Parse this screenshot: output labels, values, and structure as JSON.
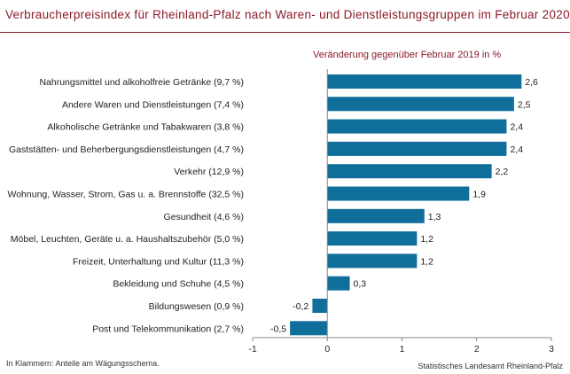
{
  "title": "Verbraucherpreisindex für Rheinland-Pfalz nach Waren- und Dienstleistungsgruppen im Februar 2020",
  "subtitle": "Veränderung gegenüber Februar 2019 in %",
  "footnote_left": "In Klammern: Anteile am Wägungsschema.",
  "footnote_right": "Statistisches Landesamt Rheinland-Pfalz",
  "colors": {
    "bar": "#0f6e9a",
    "accent": "#8b1a2b",
    "axis": "#888888"
  },
  "chart_data": {
    "type": "bar",
    "orientation": "horizontal",
    "categories": [
      "Nahrungsmittel und alkoholfreie Getränke (9,7 %)",
      "Andere Waren und Dienstleistungen (7,4 %)",
      "Alkoholische Getränke und Tabakwaren (3,8 %)",
      "Gaststätten- und Beherbergungsdienstleistungen (4,7 %)",
      "Verkehr (12,9 %)",
      "Wohnung, Wasser, Strom, Gas u. a. Brennstoffe (32,5 %)",
      "Gesundheit (4,6 %)",
      "Möbel, Leuchten, Geräte u. a. Haushaltszubehör (5,0 %)",
      "Freizeit, Unterhaltung und Kultur (11,3 %)",
      "Bekleidung und Schuhe (4,5 %)",
      "Bildungswesen (0,9 %)",
      "Post und Telekommunikation (2,7 %)"
    ],
    "values": [
      2.6,
      2.5,
      2.4,
      2.4,
      2.2,
      1.9,
      1.3,
      1.2,
      1.2,
      0.3,
      -0.2,
      -0.5
    ],
    "value_labels": [
      "2,6",
      "2,5",
      "2,4",
      "2,4",
      "2,2",
      "1,9",
      "1,3",
      "1,2",
      "1,2",
      "0,3",
      "-0,2",
      "-0,5"
    ],
    "xlim": [
      -1,
      3
    ],
    "xticks": [
      -1,
      0,
      1,
      2,
      3
    ],
    "xtick_labels": [
      "-1",
      "0",
      "1",
      "2",
      "3"
    ],
    "grid": false,
    "legend": "none"
  }
}
